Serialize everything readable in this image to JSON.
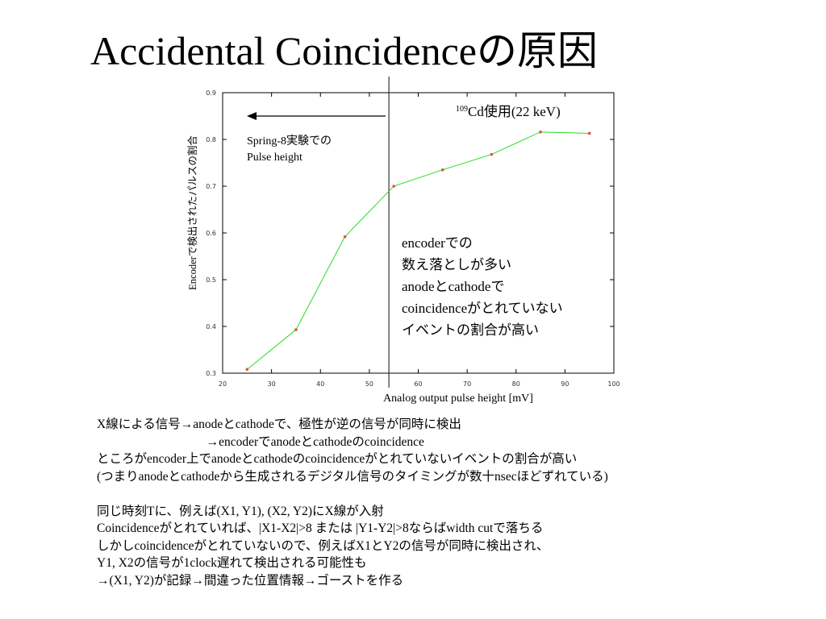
{
  "title": "Accidental Coincidenceの原因",
  "chart_data": {
    "type": "line",
    "ylabel": "Encoderで検出されたパルスの割合",
    "xlabel": "Analog output pulse height [mV]",
    "xlim": [
      20,
      100
    ],
    "ylim": [
      0.3,
      0.9
    ],
    "x_ticks": [
      "20",
      "30",
      "40",
      "50",
      "60",
      "70",
      "80",
      "90",
      "100"
    ],
    "y_ticks": [
      "0.3",
      "0.4",
      "0.5",
      "0.6",
      "0.7",
      "0.8",
      "0.9"
    ],
    "series": [
      {
        "x": [
          25,
          35,
          45,
          55,
          65,
          75,
          85,
          95
        ],
        "y": [
          0.308,
          0.393,
          0.592,
          0.7,
          0.735,
          0.768,
          0.816,
          0.813
        ]
      }
    ],
    "line_color": "#22dd22",
    "marker_color": "#e8503a",
    "vertical_line_x": 54,
    "annotations": {
      "cd_prefix": "109",
      "cd_text": "Cd使用(22 keV)",
      "spring_line1": "Spring-8実験での",
      "spring_line2": "Pulse height",
      "encoder_lines": [
        "encoderでの",
        "数え落としが多い",
        "anodeとcathodeで",
        "coincidenceがとれていない",
        "イベントの割合が高い"
      ]
    }
  },
  "body_lines": [
    "X線による信号→anodeとcathodeで、極性が逆の信号が同時に検出",
    "                                   →encoderでanodeとcathodeのcoincidence",
    "ところがencoder上でanodeとcathodeのcoincidenceがとれていないイベントの割合が高い",
    "(つまりanodeとcathodeから生成されるデジタル信号のタイミングが数十nsecほどずれている)",
    "",
    "同じ時刻Tに、例えば(X1, Y1), (X2, Y2)にX線が入射",
    "Coincidenceがとれていれば、|X1-X2|>8 または |Y1-Y2|>8ならばwidth cutで落ちる",
    "しかしcoincidenceがとれていないので、例えばX1とY2の信号が同時に検出され、",
    "Y1, X2の信号が1clock遅れて検出される可能性も",
    "→(X1, Y2)が記録→間違った位置情報→ゴーストを作る"
  ]
}
